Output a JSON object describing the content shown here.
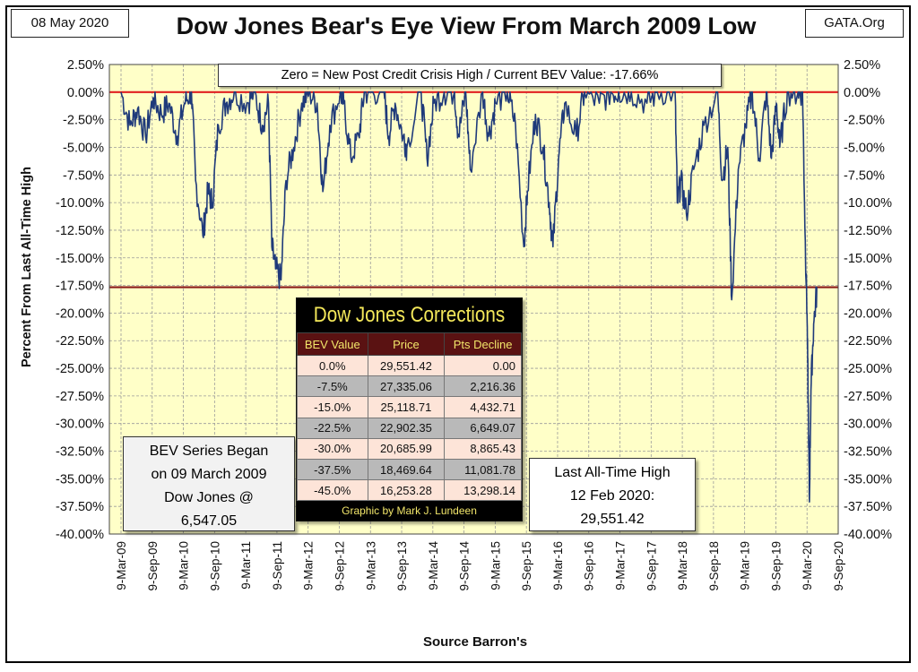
{
  "header": {
    "date": "08 May 2020",
    "site": "GATA.Org",
    "title": "Dow Jones Bear's Eye View From March 2009 Low"
  },
  "notes": {
    "zero_note": "Zero = New Post Credit Crisis High / Current BEV Value:  -17.66%",
    "bev_series": [
      "BEV Series Began",
      "on 09 March 2009",
      "Dow Jones @",
      "6,547.05"
    ],
    "last_ath": [
      "Last All-Time High",
      "12 Feb 2020:",
      "29,551.42"
    ]
  },
  "corrections_table": {
    "title": "Dow Jones Corrections",
    "headers": [
      "BEV Value",
      "Price",
      "Pts Decline"
    ],
    "rows": [
      [
        "0.0%",
        "29,551.42",
        "0.00"
      ],
      [
        "-7.5%",
        "27,335.06",
        "2,216.36"
      ],
      [
        "-15.0%",
        "25,118.71",
        "4,432.71"
      ],
      [
        "-22.5%",
        "22,902.35",
        "6,649.07"
      ],
      [
        "-30.0%",
        "20,685.99",
        "8,865.43"
      ],
      [
        "-37.5%",
        "18,469.64",
        "11,081.78"
      ],
      [
        "-45.0%",
        "16,253.28",
        "13,298.14"
      ]
    ],
    "credit": "Graphic by Mark J. Lundeen"
  },
  "chart_data": {
    "type": "line",
    "title": "Dow Jones Bear's Eye View From March 2009 Low",
    "xlabel": "Source Barron's",
    "ylabel": "Percent From Last All-Time High",
    "ylim": [
      -40,
      2.5
    ],
    "yticks": [
      "2.50%",
      "0.00%",
      "-2.50%",
      "-5.00%",
      "-7.50%",
      "-10.00%",
      "-12.50%",
      "-15.00%",
      "-17.50%",
      "-20.00%",
      "-22.50%",
      "-25.00%",
      "-27.50%",
      "-30.00%",
      "-32.50%",
      "-35.00%",
      "-37.50%",
      "-40.00%"
    ],
    "xticks": [
      "9-Mar-09",
      "9-Sep-09",
      "9-Mar-10",
      "9-Sep-10",
      "9-Mar-11",
      "9-Sep-11",
      "9-Mar-12",
      "9-Sep-12",
      "9-Mar-13",
      "9-Sep-13",
      "9-Mar-14",
      "9-Sep-14",
      "9-Mar-15",
      "9-Sep-15",
      "9-Mar-16",
      "9-Sep-16",
      "9-Mar-17",
      "9-Sep-17",
      "9-Mar-18",
      "9-Sep-18",
      "9-Mar-19",
      "9-Sep-19",
      "9-Mar-20",
      "9-Sep-20"
    ],
    "reference_lines": [
      {
        "y": 0.0,
        "color": "#e02020"
      },
      {
        "y": -17.66,
        "color": "#8b1a1a"
      }
    ],
    "grid": true,
    "plot_background": "#ffffc8",
    "series": [
      {
        "line_color": "#1f3a7a",
        "x": [
          "2009-03-09",
          "2009-05-01",
          "2009-06-15",
          "2009-08-01",
          "2009-09-15",
          "2009-11-01",
          "2009-12-15",
          "2010-02-01",
          "2010-03-15",
          "2010-04-26",
          "2010-05-20",
          "2010-07-02",
          "2010-08-01",
          "2010-08-27",
          "2010-10-01",
          "2010-11-15",
          "2011-01-01",
          "2011-03-15",
          "2011-04-29",
          "2011-06-15",
          "2011-07-21",
          "2011-08-10",
          "2011-09-01",
          "2011-10-03",
          "2011-11-01",
          "2011-12-15",
          "2012-02-01",
          "2012-03-15",
          "2012-05-01",
          "2012-06-04",
          "2012-07-15",
          "2012-09-15",
          "2012-10-05",
          "2012-11-15",
          "2012-12-31",
          "2013-02-01",
          "2013-03-15",
          "2013-05-28",
          "2013-06-24",
          "2013-08-01",
          "2013-09-18",
          "2013-10-09",
          "2013-12-31",
          "2014-02-03",
          "2014-03-15",
          "2014-05-15",
          "2014-07-15",
          "2014-08-07",
          "2014-09-19",
          "2014-10-15",
          "2014-12-26",
          "2015-01-30",
          "2015-03-11",
          "2015-05-19",
          "2015-07-07",
          "2015-08-25",
          "2015-09-15",
          "2015-11-01",
          "2015-12-15",
          "2016-01-20",
          "2016-02-11",
          "2016-03-15",
          "2016-04-20",
          "2016-06-27",
          "2016-08-15",
          "2016-11-09",
          "2017-01-15",
          "2017-03-01",
          "2017-05-15",
          "2017-08-15",
          "2017-10-15",
          "2018-01-26",
          "2018-02-08",
          "2018-03-01",
          "2018-04-02",
          "2018-05-15",
          "2018-07-15",
          "2018-10-03",
          "2018-10-29",
          "2018-12-01",
          "2018-12-24",
          "2019-01-31",
          "2019-03-15",
          "2019-04-23",
          "2019-06-03",
          "2019-07-15",
          "2019-08-14",
          "2019-09-12",
          "2019-10-02",
          "2019-11-15",
          "2020-01-17",
          "2020-02-12",
          "2020-02-27",
          "2020-03-09",
          "2020-03-16",
          "2020-03-23",
          "2020-04-01",
          "2020-04-17",
          "2020-05-08"
        ],
        "y": [
          0,
          -3,
          -1.5,
          -4,
          -0.5,
          -2,
          -1,
          -4,
          -1,
          0,
          -8,
          -13,
          -9,
          -10,
          -3,
          -1,
          0,
          -1,
          0,
          -3,
          -1,
          -14,
          -16,
          -17,
          -8,
          -5,
          -1,
          0,
          -1,
          -9,
          -3,
          0,
          -1,
          -6,
          -4,
          0,
          0,
          0,
          -4,
          -1,
          -4,
          -5,
          0,
          -6,
          -1,
          0,
          0,
          -4,
          0,
          -7,
          0,
          -4,
          -1,
          0,
          -3,
          -14,
          -9,
          -2,
          -5,
          -10,
          -14,
          -6,
          -1,
          -4,
          0,
          -1,
          0,
          0,
          0,
          -1,
          0,
          0,
          -10,
          -8,
          -11,
          -7,
          -3,
          0,
          -8,
          -5,
          -18.8,
          -7,
          -3,
          0,
          -6,
          0,
          -6,
          -1,
          -5,
          0,
          0,
          0,
          -13,
          -20,
          -28,
          -37.1,
          -27,
          -21,
          -17.66
        ]
      }
    ]
  }
}
